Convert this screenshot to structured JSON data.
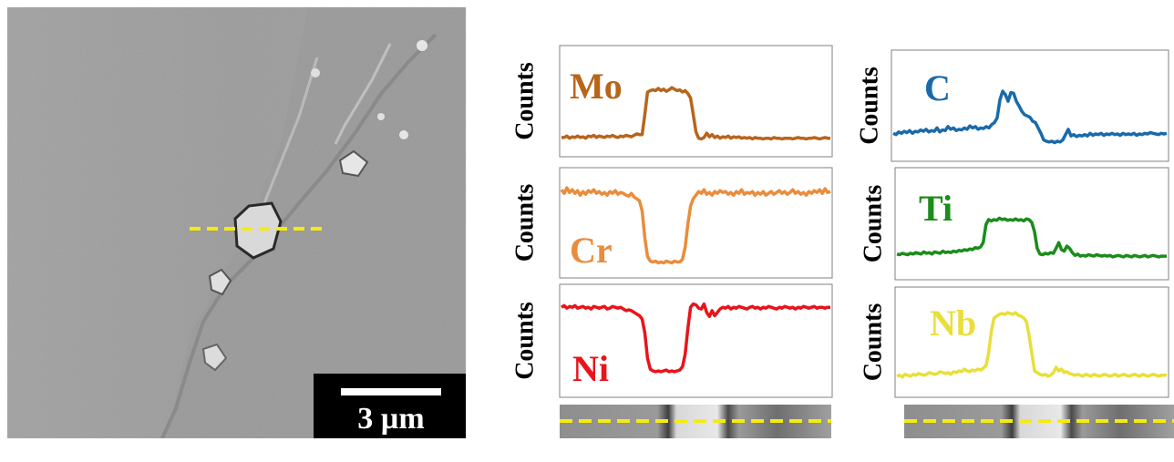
{
  "sem_image": {
    "scale_bar_label": "3 µm",
    "line_color": "#f5ec0f"
  },
  "chart_data": [
    {
      "type": "line",
      "name": "Mo",
      "ylabel": "Counts",
      "color": "#b8651b",
      "ylim": [
        0,
        100
      ],
      "x": [
        0,
        1,
        2,
        3,
        4,
        5,
        6,
        7,
        8,
        9,
        10,
        11,
        12,
        13,
        14,
        15,
        16,
        17,
        18,
        19,
        20,
        21,
        22,
        23,
        24,
        25,
        26,
        27,
        28,
        29,
        30,
        31,
        32,
        33,
        34,
        35,
        36,
        37,
        38,
        39,
        40,
        41,
        42,
        43,
        44,
        45,
        46,
        47,
        48,
        49,
        50,
        51,
        52,
        53,
        54,
        55,
        56,
        57,
        58,
        59,
        60,
        61,
        62,
        63,
        64,
        65,
        66,
        67,
        68,
        69,
        70,
        71,
        72,
        73,
        74,
        75,
        76,
        77,
        78,
        79,
        80,
        81,
        82,
        83,
        84,
        85,
        86,
        87,
        88,
        89,
        90,
        91,
        92,
        93,
        94,
        95,
        96,
        97,
        98,
        99,
        100
      ],
      "values": [
        8,
        8,
        10,
        7,
        9,
        8,
        10,
        8,
        9,
        7,
        10,
        9,
        11,
        8,
        10,
        9,
        8,
        10,
        9,
        11,
        9,
        8,
        10,
        9,
        11,
        10,
        9,
        11,
        13,
        12,
        12,
        40,
        70,
        72,
        73,
        72,
        75,
        72,
        74,
        71,
        73,
        76,
        74,
        72,
        73,
        70,
        72,
        68,
        62,
        40,
        16,
        7,
        6,
        8,
        14,
        9,
        12,
        8,
        10,
        7,
        9,
        8,
        10,
        7,
        9,
        8,
        9,
        7,
        8,
        7,
        8,
        6,
        8,
        7,
        7,
        6,
        7,
        7,
        6,
        8,
        7,
        7,
        6,
        7,
        7,
        7,
        6,
        7,
        8,
        7,
        7,
        6,
        7,
        7,
        8,
        7,
        6,
        7,
        8,
        7,
        7
      ]
    },
    {
      "type": "line",
      "name": "Cr",
      "ylabel": "Counts",
      "color": "#ea8c3c",
      "ylim": [
        0,
        100
      ],
      "x": [
        0,
        1,
        2,
        3,
        4,
        5,
        6,
        7,
        8,
        9,
        10,
        11,
        12,
        13,
        14,
        15,
        16,
        17,
        18,
        19,
        20,
        21,
        22,
        23,
        24,
        25,
        26,
        27,
        28,
        29,
        30,
        31,
        32,
        33,
        34,
        35,
        36,
        37,
        38,
        39,
        40,
        41,
        42,
        43,
        44,
        45,
        46,
        47,
        48,
        49,
        50,
        51,
        52,
        53,
        54,
        55,
        56,
        57,
        58,
        59,
        60,
        61,
        62,
        63,
        64,
        65,
        66,
        67,
        68,
        69,
        70,
        71,
        72,
        73,
        74,
        75,
        76,
        77,
        78,
        79,
        80,
        81,
        82,
        83,
        84,
        85,
        86,
        87,
        88,
        89,
        90,
        91,
        92,
        93,
        94,
        95,
        96,
        97,
        98,
        99,
        100
      ],
      "values": [
        88,
        84,
        90,
        85,
        88,
        84,
        87,
        82,
        86,
        83,
        87,
        85,
        88,
        84,
        86,
        83,
        85,
        82,
        86,
        84,
        87,
        83,
        85,
        84,
        82,
        81,
        84,
        80,
        78,
        76,
        65,
        35,
        15,
        10,
        9,
        10,
        8,
        9,
        8,
        10,
        9,
        8,
        10,
        9,
        9,
        12,
        25,
        50,
        70,
        78,
        82,
        86,
        84,
        88,
        83,
        85,
        82,
        86,
        84,
        87,
        85,
        86,
        83,
        85,
        82,
        86,
        84,
        88,
        83,
        85,
        84,
        86,
        82,
        85,
        83,
        86,
        82,
        84,
        86,
        83,
        85,
        87,
        84,
        86,
        83,
        85,
        88,
        84,
        86,
        83,
        85,
        82,
        86,
        84,
        87,
        85,
        88,
        84,
        89,
        85,
        86
      ]
    },
    {
      "type": "line",
      "name": "Ni",
      "ylabel": "Counts",
      "color": "#e8141a",
      "ylim": [
        0,
        100
      ],
      "x": [
        0,
        1,
        2,
        3,
        4,
        5,
        6,
        7,
        8,
        9,
        10,
        11,
        12,
        13,
        14,
        15,
        16,
        17,
        18,
        19,
        20,
        21,
        22,
        23,
        24,
        25,
        26,
        27,
        28,
        29,
        30,
        31,
        32,
        33,
        34,
        35,
        36,
        37,
        38,
        39,
        40,
        41,
        42,
        43,
        44,
        45,
        46,
        47,
        48,
        49,
        50,
        51,
        52,
        53,
        54,
        55,
        56,
        57,
        58,
        59,
        60,
        61,
        62,
        63,
        64,
        65,
        66,
        67,
        68,
        69,
        70,
        71,
        72,
        73,
        74,
        75,
        76,
        77,
        78,
        79,
        80,
        81,
        82,
        83,
        84,
        85,
        86,
        87,
        88,
        89,
        90,
        91,
        92,
        93,
        94,
        95,
        96,
        97,
        98,
        99,
        100
      ],
      "values": [
        86,
        88,
        85,
        87,
        86,
        88,
        85,
        86,
        87,
        85,
        86,
        84,
        87,
        86,
        85,
        86,
        87,
        84,
        85,
        87,
        86,
        85,
        86,
        84,
        82,
        83,
        82,
        80,
        78,
        76,
        72,
        55,
        25,
        12,
        10,
        9,
        10,
        9,
        10,
        11,
        9,
        10,
        9,
        10,
        11,
        15,
        30,
        60,
        86,
        90,
        89,
        85,
        84,
        90,
        80,
        75,
        82,
        76,
        80,
        84,
        86,
        85,
        87,
        84,
        86,
        85,
        87,
        86,
        85,
        84,
        86,
        87,
        85,
        86,
        84,
        86,
        85,
        87,
        86,
        85,
        84,
        86,
        85,
        87,
        86,
        85,
        86,
        84,
        86,
        85,
        87,
        86,
        85,
        86,
        87,
        85,
        86,
        86,
        85,
        86,
        86
      ]
    },
    {
      "type": "line",
      "name": "C",
      "ylabel": "Counts",
      "color": "#1a6aaa",
      "ylim": [
        0,
        100
      ],
      "x": [
        0,
        1,
        2,
        3,
        4,
        5,
        6,
        7,
        8,
        9,
        10,
        11,
        12,
        13,
        14,
        15,
        16,
        17,
        18,
        19,
        20,
        21,
        22,
        23,
        24,
        25,
        26,
        27,
        28,
        29,
        30,
        31,
        32,
        33,
        34,
        35,
        36,
        37,
        38,
        39,
        40,
        41,
        42,
        43,
        44,
        45,
        46,
        47,
        48,
        49,
        50,
        51,
        52,
        53,
        54,
        55,
        56,
        57,
        58,
        59,
        60,
        61,
        62,
        63,
        64,
        65,
        66,
        67,
        68,
        69,
        70,
        71,
        72,
        73,
        74,
        75,
        76,
        77,
        78,
        79,
        80,
        81,
        82,
        83,
        84,
        85,
        86,
        87,
        88,
        89,
        90,
        91,
        92,
        93,
        94,
        95,
        96,
        97,
        98,
        99,
        100
      ],
      "values": [
        22,
        20,
        24,
        22,
        25,
        23,
        26,
        22,
        25,
        24,
        27,
        25,
        28,
        24,
        26,
        25,
        30,
        24,
        27,
        26,
        32,
        28,
        30,
        26,
        28,
        27,
        30,
        28,
        33,
        30,
        32,
        28,
        30,
        29,
        32,
        30,
        35,
        38,
        45,
        72,
        85,
        80,
        70,
        83,
        82,
        70,
        63,
        55,
        50,
        48,
        46,
        40,
        38,
        30,
        22,
        12,
        10,
        9,
        10,
        8,
        10,
        9,
        12,
        20,
        28,
        18,
        20,
        17,
        19,
        18,
        20,
        18,
        22,
        19,
        21,
        20,
        22,
        19,
        21,
        20,
        22,
        20,
        21,
        19,
        22,
        20,
        21,
        20,
        22,
        19,
        21,
        20,
        22,
        21,
        23,
        22,
        21,
        20,
        22,
        21,
        22
      ]
    },
    {
      "type": "line",
      "name": "Ti",
      "ylabel": "Counts",
      "color": "#1b8c1b",
      "ylim": [
        0,
        100
      ],
      "x": [
        0,
        1,
        2,
        3,
        4,
        5,
        6,
        7,
        8,
        9,
        10,
        11,
        12,
        13,
        14,
        15,
        16,
        17,
        18,
        19,
        20,
        21,
        22,
        23,
        24,
        25,
        26,
        27,
        28,
        29,
        30,
        31,
        32,
        33,
        34,
        35,
        36,
        37,
        38,
        39,
        40,
        41,
        42,
        43,
        44,
        45,
        46,
        47,
        48,
        49,
        50,
        51,
        52,
        53,
        54,
        55,
        56,
        57,
        58,
        59,
        60,
        61,
        62,
        63,
        64,
        65,
        66,
        67,
        68,
        69,
        70,
        71,
        72,
        73,
        74,
        75,
        76,
        77,
        78,
        79,
        80,
        81,
        82,
        83,
        84,
        85,
        86,
        87,
        88,
        89,
        90,
        91,
        92,
        93,
        94,
        95,
        96,
        97,
        98,
        99,
        100
      ],
      "values": [
        14,
        13,
        15,
        14,
        13,
        15,
        14,
        16,
        15,
        14,
        17,
        15,
        16,
        14,
        17,
        16,
        15,
        18,
        16,
        17,
        16,
        18,
        17,
        19,
        18,
        20,
        19,
        21,
        20,
        23,
        22,
        24,
        30,
        55,
        62,
        60,
        62,
        61,
        64,
        62,
        63,
        61,
        62,
        61,
        63,
        61,
        62,
        60,
        63,
        62,
        58,
        45,
        22,
        14,
        13,
        15,
        14,
        16,
        15,
        22,
        30,
        20,
        18,
        25,
        22,
        16,
        12,
        14,
        11,
        12,
        11,
        13,
        12,
        11,
        13,
        12,
        11,
        12,
        11,
        12,
        10,
        11,
        12,
        11,
        10,
        12,
        11,
        10,
        12,
        11,
        10,
        11,
        12,
        10,
        11,
        12,
        11,
        10,
        11,
        11,
        11
      ]
    },
    {
      "type": "line",
      "name": "Nb",
      "ylabel": "Counts",
      "color": "#e8df3c",
      "ylim": [
        0,
        100
      ],
      "x": [
        0,
        1,
        2,
        3,
        4,
        5,
        6,
        7,
        8,
        9,
        10,
        11,
        12,
        13,
        14,
        15,
        16,
        17,
        18,
        19,
        20,
        21,
        22,
        23,
        24,
        25,
        26,
        27,
        28,
        29,
        30,
        31,
        32,
        33,
        34,
        35,
        36,
        37,
        38,
        39,
        40,
        41,
        42,
        43,
        44,
        45,
        46,
        47,
        48,
        49,
        50,
        51,
        52,
        53,
        54,
        55,
        56,
        57,
        58,
        59,
        60,
        61,
        62,
        63,
        64,
        65,
        66,
        67,
        68,
        69,
        70,
        71,
        72,
        73,
        74,
        75,
        76,
        77,
        78,
        79,
        80,
        81,
        82,
        83,
        84,
        85,
        86,
        87,
        88,
        89,
        90,
        91,
        92,
        93,
        94,
        95,
        96,
        97,
        98,
        99,
        100
      ],
      "values": [
        14,
        15,
        13,
        16,
        15,
        14,
        16,
        15,
        17,
        16,
        15,
        16,
        18,
        17,
        16,
        17,
        19,
        18,
        17,
        18,
        16,
        19,
        18,
        20,
        19,
        22,
        20,
        19,
        21,
        20,
        22,
        21,
        23,
        26,
        40,
        65,
        80,
        82,
        84,
        85,
        84,
        86,
        85,
        84,
        86,
        83,
        82,
        80,
        76,
        60,
        40,
        20,
        18,
        16,
        15,
        16,
        14,
        15,
        18,
        24,
        20,
        22,
        18,
        19,
        17,
        16,
        15,
        16,
        15,
        14,
        16,
        15,
        14,
        16,
        15,
        14,
        15,
        16,
        15,
        14,
        15,
        16,
        14,
        15,
        16,
        15,
        14,
        15,
        16,
        15,
        14,
        16,
        15,
        14,
        15,
        16,
        15,
        14,
        15,
        15,
        15
      ]
    }
  ]
}
